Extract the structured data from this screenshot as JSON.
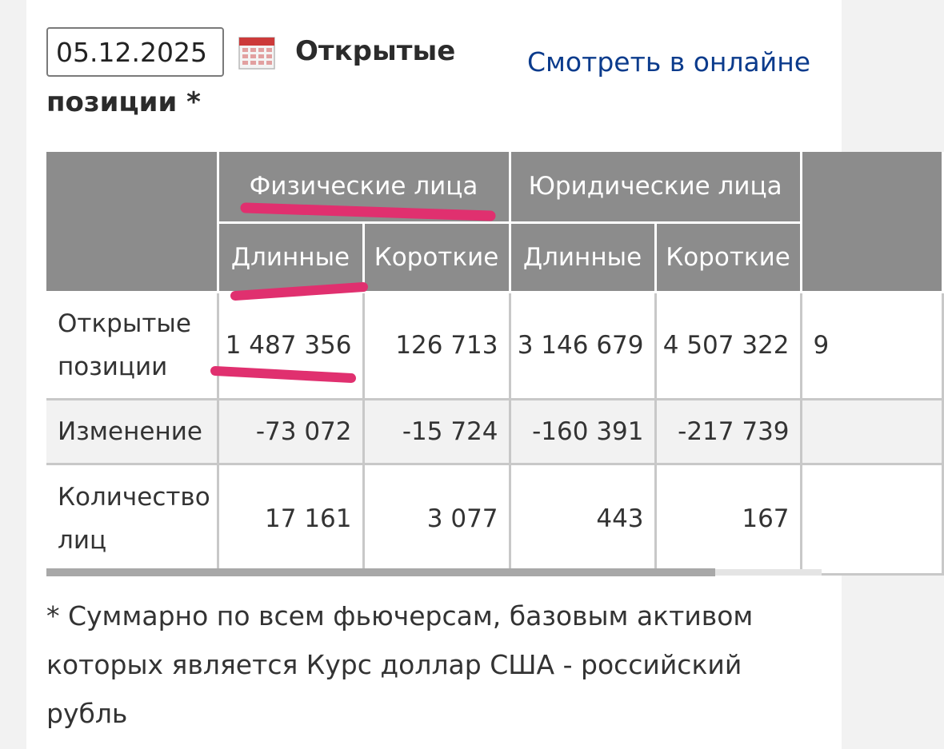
{
  "date_field": {
    "value": "05.12.2025"
  },
  "title": {
    "line1": "Открытые",
    "line2": "позиции *"
  },
  "online_link": {
    "label": "Смотреть в онлайне"
  },
  "table": {
    "group_headers": [
      "Физические лица",
      "Юридические лица"
    ],
    "sub_headers": [
      "Длинные",
      "Короткие",
      "Длинные",
      "Короткие"
    ],
    "rows": [
      {
        "label": "Открытые позиции",
        "values": [
          "1 487 356",
          "126 713",
          "3 146 679",
          "4 507 322"
        ],
        "cut_value": "9"
      },
      {
        "label": "Изменение",
        "values": [
          "-73 072",
          "-15 724",
          "-160 391",
          "-217 739"
        ]
      },
      {
        "label": "Количество лиц",
        "values": [
          "17 161",
          "3 077",
          "443",
          "167"
        ]
      }
    ]
  },
  "footnote": "* Суммарно по всем фьючерсам, базовым активом которых является Курс доллар США - российский рубль",
  "colors": {
    "header_bg": "#8c8c8c",
    "link": "#0b3b8c",
    "highlight_marks": "#e0306f",
    "calendar_icon": "#cc3a3a"
  },
  "icons": {
    "calendar": "calendar-icon"
  }
}
